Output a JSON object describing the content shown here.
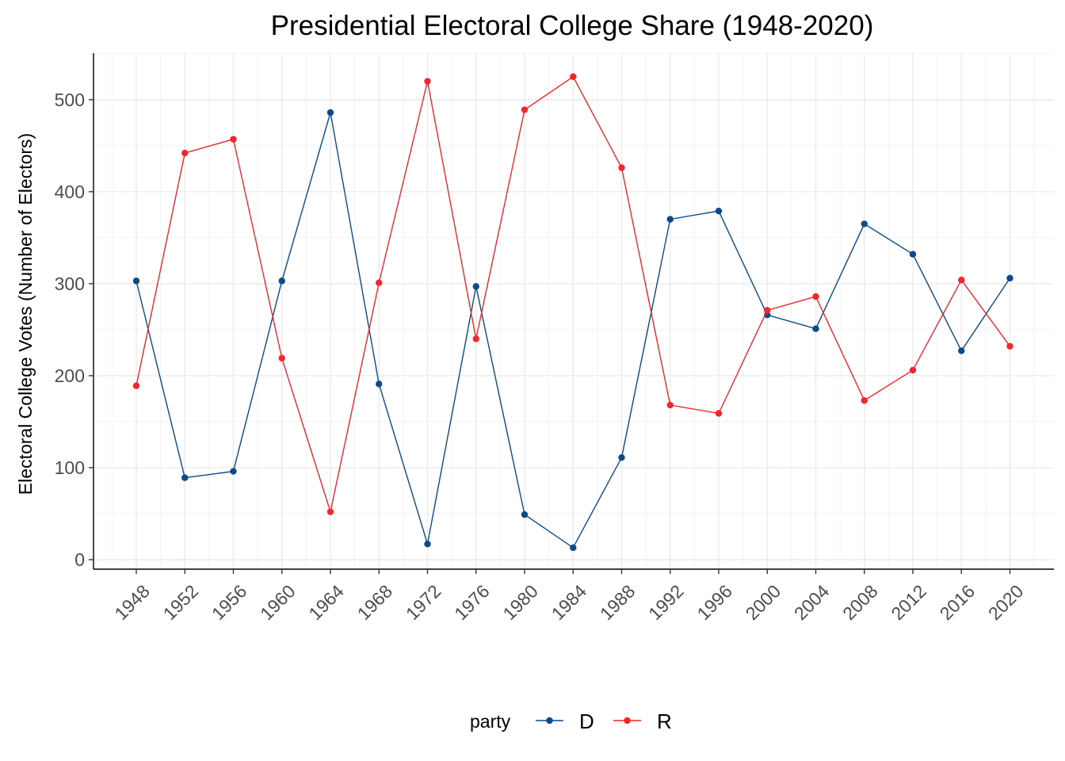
{
  "chart_data": {
    "type": "line",
    "title": "Presidential Electoral College Share (1948-2020)",
    "xlabel": "",
    "ylabel": "Electoral College Votes (Number of Electors)",
    "categories": [
      "1948",
      "1952",
      "1956",
      "1960",
      "1964",
      "1968",
      "1972",
      "1976",
      "1980",
      "1984",
      "1988",
      "1992",
      "1996",
      "2000",
      "2004",
      "2008",
      "2012",
      "2016",
      "2020"
    ],
    "y_ticks": [
      0,
      100,
      200,
      300,
      400,
      500
    ],
    "ylim": [
      -10,
      550
    ],
    "grid": true,
    "legend": {
      "title": "party",
      "position": "bottom"
    },
    "series": [
      {
        "name": "D",
        "color": "#0c4a8a",
        "values": [
          303,
          89,
          96,
          303,
          486,
          191,
          17,
          297,
          49,
          13,
          111,
          370,
          379,
          266,
          251,
          365,
          332,
          227,
          306
        ]
      },
      {
        "name": "R",
        "color": "#f2262c",
        "values": [
          189,
          442,
          457,
          219,
          52,
          301,
          520,
          240,
          489,
          525,
          426,
          168,
          159,
          271,
          286,
          173,
          206,
          304,
          232
        ]
      }
    ]
  }
}
